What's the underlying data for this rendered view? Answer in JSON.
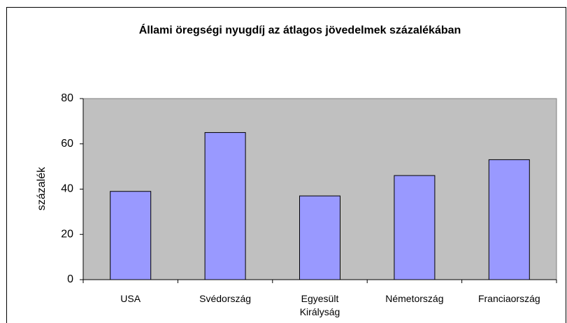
{
  "chart_data": {
    "type": "bar",
    "title": "Állami öregségi nyugdíj az átlagos jövedelmek százalékában",
    "y_label": "százalék",
    "categories": [
      "USA",
      "Svédország",
      "Egyesült Királyság",
      "Németország",
      "Franciaország"
    ],
    "values": [
      39,
      65,
      37,
      46,
      53
    ],
    "color": "#9999ff",
    "ylim": [
      0,
      80
    ],
    "yticks": [
      0,
      20,
      40,
      60,
      80
    ],
    "grid": false
  }
}
